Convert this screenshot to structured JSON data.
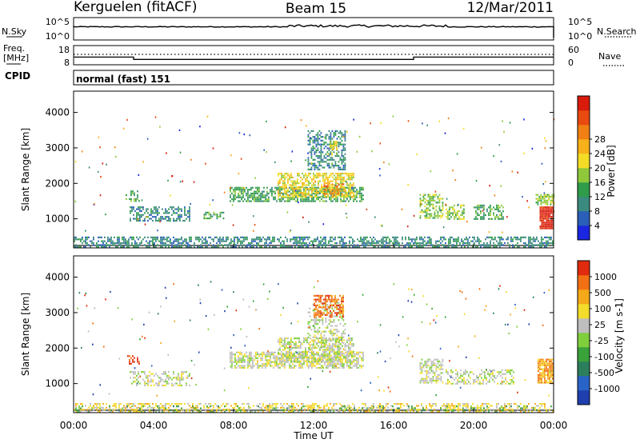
{
  "header": {
    "radar": "Kerguelen (fitACF)",
    "beam": "Beam 15",
    "date": "12/Mar/2011"
  },
  "sky_panel": {
    "left_label": "N.Sky",
    "left_ticks": [
      "10^5",
      "10^0"
    ],
    "right_ticks": [
      "10^5",
      "10^0"
    ],
    "right_label": "N.Search",
    "legend_line": "dotted"
  },
  "freq_panel": {
    "label_line1": "Freq.",
    "label_line2": "[MHz]",
    "left_ticks": [
      "18",
      "8"
    ],
    "right_ticks": [
      "60",
      "0"
    ],
    "right_label": "Nave",
    "legend_line": "dotted",
    "freq_steps": [
      {
        "start_h": 0,
        "end_h": 3,
        "mhz": 12.0
      },
      {
        "start_h": 3,
        "end_h": 17,
        "mhz": 10.8
      },
      {
        "start_h": 17,
        "end_h": 24,
        "mhz": 12.0
      }
    ]
  },
  "cpid": {
    "label": "CPID",
    "value": "normal (fast) 151"
  },
  "x_axis": {
    "label": "Time UT",
    "ticks": [
      "00:00",
      "04:00",
      "08:00",
      "12:00",
      "16:00",
      "20:00",
      "00:00"
    ]
  },
  "chart_data": [
    {
      "type": "heatmap",
      "quantity": "Power",
      "ylabel": "Slant Range [km]",
      "yticks": [
        "1000",
        "2000",
        "3000",
        "4000"
      ],
      "ylim": [
        180,
        4600
      ],
      "xlim_hours": [
        0,
        24
      ],
      "colorbar": {
        "label": "Power [dB]",
        "ticks": [
          "4",
          "8",
          "12",
          "16",
          "20",
          "24",
          "28"
        ],
        "colors": [
          "#1b26e0",
          "#2a5fb8",
          "#3b8a7f",
          "#2f9c4a",
          "#8fc93b",
          "#f4dc26",
          "#f7b11a",
          "#f07f14",
          "#e84a10",
          "#d91b0c"
        ]
      },
      "regions": [
        {
          "t0": 0.0,
          "t1": 24.0,
          "r0": 200,
          "r1": 500,
          "level": 2,
          "density": 0.55
        },
        {
          "t0": 2.8,
          "t1": 5.8,
          "r0": 950,
          "r1": 1350,
          "level": 2,
          "density": 0.5
        },
        {
          "t0": 2.6,
          "t1": 3.3,
          "r0": 1500,
          "r1": 1800,
          "level": 3,
          "density": 0.5
        },
        {
          "t0": 6.5,
          "t1": 7.5,
          "r0": 1000,
          "r1": 1200,
          "level": 3,
          "density": 0.5
        },
        {
          "t0": 7.8,
          "t1": 14.5,
          "r0": 1500,
          "r1": 1900,
          "level": 3,
          "density": 0.65
        },
        {
          "t0": 10.2,
          "t1": 14.0,
          "r0": 1650,
          "r1": 2300,
          "level": 5,
          "density": 0.6
        },
        {
          "t0": 12.5,
          "t1": 13.5,
          "r0": 1700,
          "r1": 2000,
          "level": 7,
          "density": 0.6
        },
        {
          "t0": 11.7,
          "t1": 13.6,
          "r0": 2400,
          "r1": 3500,
          "level": 2,
          "density": 0.45
        },
        {
          "t0": 12.8,
          "t1": 13.2,
          "r0": 2800,
          "r1": 3200,
          "level": 5,
          "density": 0.6
        },
        {
          "t0": 17.3,
          "t1": 18.5,
          "r0": 1000,
          "r1": 1700,
          "level": 4,
          "density": 0.55
        },
        {
          "t0": 18.6,
          "t1": 19.5,
          "r0": 1000,
          "r1": 1400,
          "level": 4,
          "density": 0.5
        },
        {
          "t0": 20.0,
          "t1": 21.5,
          "r0": 1000,
          "r1": 1400,
          "level": 3,
          "density": 0.5
        },
        {
          "t0": 23.1,
          "t1": 24.0,
          "r0": 1400,
          "r1": 1700,
          "level": 4,
          "density": 0.7
        },
        {
          "t0": 23.3,
          "t1": 24.0,
          "r0": 750,
          "r1": 1350,
          "level": 9,
          "density": 0.9
        }
      ]
    },
    {
      "type": "heatmap",
      "quantity": "Velocity",
      "ylabel": "Slant Range [km]",
      "yticks": [
        "1000",
        "2000",
        "3000",
        "4000"
      ],
      "ylim": [
        180,
        4600
      ],
      "xlim_hours": [
        0,
        24
      ],
      "colorbar": {
        "label": "Velocity [m s-1]",
        "ticks": [
          "1000",
          "500",
          "100",
          "25",
          "-25",
          "-100",
          "-500",
          "-1000"
        ],
        "colors": [
          "#1f3fae",
          "#2a63c8",
          "#2c7f5c",
          "#3aa23a",
          "#7fcf3d",
          "#bebebe",
          "#f3dc2b",
          "#f5a91a",
          "#f17013",
          "#e02b0e"
        ]
      },
      "regions": [
        {
          "t0": 0.0,
          "t1": 24.0,
          "r0": 200,
          "r1": 450,
          "level": 6,
          "density": 0.45
        },
        {
          "t0": 0.0,
          "t1": 24.0,
          "r0": 200,
          "r1": 380,
          "level": 3,
          "density": 0.15
        },
        {
          "t0": 2.6,
          "t1": 3.3,
          "r0": 1550,
          "r1": 1800,
          "level": 9,
          "density": 0.45
        },
        {
          "t0": 2.8,
          "t1": 5.8,
          "r0": 950,
          "r1": 1350,
          "level": 5,
          "density": 0.4
        },
        {
          "t0": 7.8,
          "t1": 14.5,
          "r0": 1450,
          "r1": 1900,
          "level": 5,
          "density": 0.65
        },
        {
          "t0": 10.2,
          "t1": 14.0,
          "r0": 1650,
          "r1": 2300,
          "level": 5,
          "density": 0.6
        },
        {
          "t0": 11.7,
          "t1": 13.6,
          "r0": 2000,
          "r1": 3300,
          "level": 5,
          "density": 0.35
        },
        {
          "t0": 12.0,
          "t1": 13.5,
          "r0": 2900,
          "r1": 3500,
          "level": 8,
          "density": 0.55
        },
        {
          "t0": 17.3,
          "t1": 18.5,
          "r0": 1000,
          "r1": 1700,
          "level": 5,
          "density": 0.55
        },
        {
          "t0": 18.6,
          "t1": 22.0,
          "r0": 1000,
          "r1": 1400,
          "level": 5,
          "density": 0.4
        },
        {
          "t0": 23.2,
          "t1": 24.0,
          "r0": 1000,
          "r1": 1700,
          "level": 7,
          "density": 0.85
        }
      ]
    }
  ]
}
